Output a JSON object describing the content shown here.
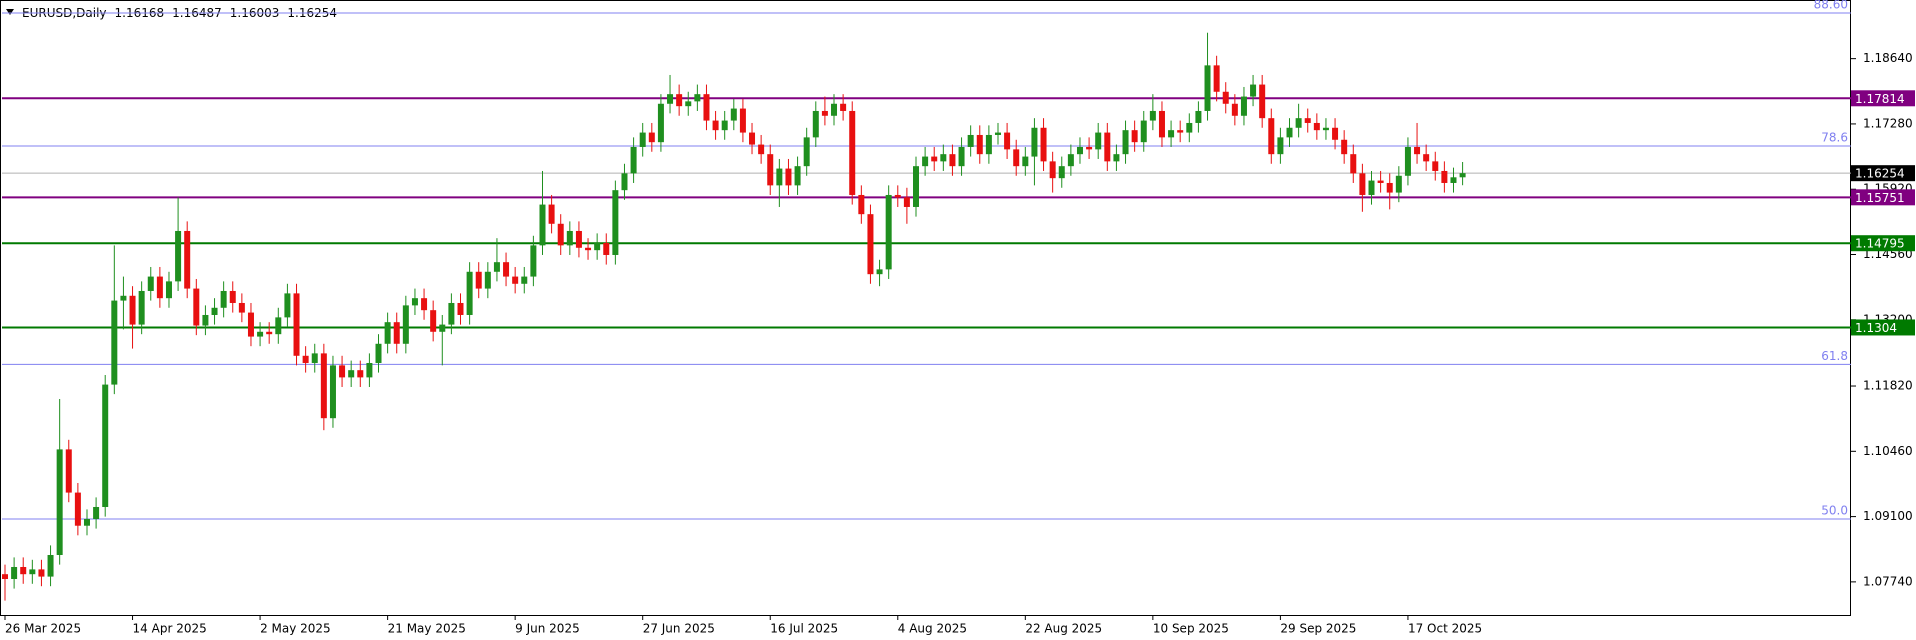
{
  "chart_data": {
    "type": "candlestick",
    "symbol": "EURUSD,Daily",
    "categories": [
      "26 Mar 2025",
      null,
      null,
      null,
      null,
      null,
      null,
      null,
      null,
      null,
      null,
      null,
      null,
      null,
      "14 Apr 2025",
      null,
      null,
      null,
      null,
      null,
      null,
      null,
      null,
      null,
      null,
      null,
      null,
      null,
      "2 May 2025",
      null,
      null,
      null,
      null,
      null,
      null,
      null,
      null,
      null,
      null,
      null,
      null,
      null,
      "21 May 2025",
      null,
      null,
      null,
      null,
      null,
      null,
      null,
      null,
      null,
      null,
      null,
      null,
      null,
      "9 Jun 2025",
      null,
      null,
      null,
      null,
      null,
      null,
      null,
      null,
      null,
      null,
      null,
      null,
      null,
      "27 Jun 2025",
      null,
      null,
      null,
      null,
      null,
      null,
      null,
      null,
      null,
      null,
      null,
      null,
      null,
      "16 Jul 2025",
      null,
      null,
      null,
      null,
      null,
      null,
      null,
      null,
      null,
      null,
      null,
      null,
      null,
      "4 Aug 2025",
      null,
      null,
      null,
      null,
      null,
      null,
      null,
      null,
      null,
      null,
      null,
      null,
      null,
      "22 Aug 2025",
      null,
      null,
      null,
      null,
      null,
      null,
      null,
      null,
      null,
      null,
      null,
      null,
      null,
      "10 Sep 2025",
      null,
      null,
      null,
      null,
      null,
      null,
      null,
      null,
      null,
      null,
      null,
      null,
      null,
      "29 Sep 2025",
      null,
      null,
      null,
      null,
      null,
      null,
      null,
      null,
      null,
      null,
      null,
      null,
      null,
      "17 Oct 2025",
      null,
      null,
      null,
      null,
      null,
      null
    ],
    "open": [
      1.079,
      1.078,
      1.0805,
      1.079,
      1.08,
      1.0785,
      1.083,
      1.105,
      1.096,
      1.0891,
      1.0905,
      1.093,
      1.1185,
      1.136,
      1.137,
      1.131,
      1.138,
      1.141,
      1.1365,
      1.14,
      1.1505,
      1.1385,
      1.1308,
      1.133,
      1.1345,
      1.138,
      1.1355,
      1.1335,
      1.1285,
      1.1295,
      1.129,
      1.1325,
      1.1375,
      1.1245,
      1.123,
      1.125,
      1.1115,
      1.1225,
      1.12,
      1.1215,
      1.12,
      1.123,
      1.127,
      1.1315,
      1.127,
      1.135,
      1.1365,
      1.134,
      1.1295,
      1.131,
      1.1355,
      1.133,
      1.142,
      1.1385,
      1.142,
      1.144,
      1.141,
      1.1395,
      1.141,
      1.1475,
      1.156,
      1.152,
      1.1475,
      1.1505,
      1.147,
      1.1465,
      1.148,
      1.1455,
      1.159,
      1.1625,
      1.168,
      1.171,
      1.169,
      1.177,
      1.179,
      1.1765,
      1.1775,
      1.179,
      1.1735,
      1.1715,
      1.1735,
      1.176,
      1.171,
      1.1685,
      1.1665,
      1.16,
      1.1635,
      1.16,
      1.164,
      1.17,
      1.1755,
      1.1745,
      1.177,
      1.1755,
      1.158,
      1.154,
      1.1415,
      1.1425,
      1.158,
      1.1575,
      1.1555,
      1.164,
      1.166,
      1.165,
      1.1665,
      1.164,
      1.168,
      1.1705,
      1.1665,
      1.1705,
      1.171,
      1.1675,
      1.164,
      1.166,
      1.172,
      1.165,
      1.1615,
      1.164,
      1.1665,
      1.168,
      1.1675,
      1.171,
      1.165,
      1.1665,
      1.1715,
      1.169,
      1.1735,
      1.1755,
      1.17,
      1.1715,
      1.171,
      1.173,
      1.1755,
      1.185,
      1.1795,
      1.177,
      1.1745,
      1.1785,
      1.181,
      1.174,
      1.1665,
      1.17,
      1.172,
      1.174,
      1.173,
      1.1715,
      1.172,
      1.1695,
      1.1665,
      1.1625,
      1.158,
      1.161,
      1.1605,
      1.1585,
      1.162,
      1.168,
      1.1665,
      1.165,
      1.163,
      1.1605,
      1.16168
    ],
    "high": [
      1.081,
      1.0825,
      1.0825,
      1.082,
      1.082,
      1.085,
      1.1155,
      1.107,
      1.098,
      1.0925,
      1.095,
      1.1205,
      1.1475,
      1.141,
      1.139,
      1.14,
      1.143,
      1.143,
      1.142,
      1.1575,
      1.1525,
      1.1405,
      1.135,
      1.1365,
      1.14,
      1.14,
      1.1375,
      1.1355,
      1.1315,
      1.1315,
      1.1345,
      1.1395,
      1.1395,
      1.1265,
      1.127,
      1.127,
      1.1245,
      1.1245,
      1.1235,
      1.1235,
      1.125,
      1.129,
      1.1335,
      1.1335,
      1.137,
      1.1385,
      1.1385,
      1.136,
      1.133,
      1.1375,
      1.1375,
      1.144,
      1.144,
      1.144,
      1.149,
      1.146,
      1.143,
      1.143,
      1.1495,
      1.163,
      1.158,
      1.154,
      1.1525,
      1.1525,
      1.149,
      1.15,
      1.15,
      1.161,
      1.1645,
      1.17,
      1.173,
      1.173,
      1.179,
      1.183,
      1.181,
      1.1795,
      1.181,
      1.181,
      1.1755,
      1.1755,
      1.178,
      1.178,
      1.173,
      1.1705,
      1.1685,
      1.1655,
      1.1655,
      1.166,
      1.172,
      1.1775,
      1.1785,
      1.179,
      1.179,
      1.1775,
      1.16,
      1.156,
      1.1445,
      1.16,
      1.16,
      1.1595,
      1.166,
      1.168,
      1.168,
      1.1685,
      1.1685,
      1.17,
      1.1725,
      1.1725,
      1.1725,
      1.173,
      1.173,
      1.1695,
      1.168,
      1.174,
      1.174,
      1.167,
      1.166,
      1.1685,
      1.17,
      1.17,
      1.173,
      1.173,
      1.1685,
      1.1735,
      1.1735,
      1.1755,
      1.179,
      1.1775,
      1.1735,
      1.1735,
      1.175,
      1.1775,
      1.1918,
      1.187,
      1.1815,
      1.179,
      1.1805,
      1.183,
      1.183,
      1.176,
      1.172,
      1.174,
      1.177,
      1.176,
      1.175,
      1.174,
      1.174,
      1.1715,
      1.1685,
      1.1645,
      1.163,
      1.163,
      1.1625,
      1.164,
      1.17,
      1.173,
      1.1685,
      1.167,
      1.165,
      1.1637,
      1.16487
    ],
    "low": [
      1.0735,
      1.076,
      1.077,
      1.077,
      1.0765,
      1.0765,
      1.081,
      1.094,
      1.0871,
      1.0871,
      1.0885,
      1.091,
      1.1165,
      1.13,
      1.126,
      1.129,
      1.136,
      1.1345,
      1.1345,
      1.138,
      1.1365,
      1.1288,
      1.1288,
      1.131,
      1.1325,
      1.1335,
      1.1315,
      1.1265,
      1.1265,
      1.127,
      1.127,
      1.1305,
      1.1225,
      1.121,
      1.121,
      1.109,
      1.1095,
      1.118,
      1.118,
      1.118,
      1.118,
      1.121,
      1.125,
      1.125,
      1.125,
      1.133,
      1.132,
      1.1275,
      1.1225,
      1.129,
      1.131,
      1.131,
      1.1365,
      1.1365,
      1.14,
      1.139,
      1.1375,
      1.1375,
      1.139,
      1.1455,
      1.15,
      1.1455,
      1.1455,
      1.145,
      1.1445,
      1.1445,
      1.1435,
      1.1435,
      1.157,
      1.1605,
      1.166,
      1.167,
      1.167,
      1.175,
      1.1745,
      1.1745,
      1.1755,
      1.1715,
      1.1695,
      1.1695,
      1.1715,
      1.169,
      1.1665,
      1.1645,
      1.158,
      1.1555,
      1.158,
      1.158,
      1.162,
      1.168,
      1.1725,
      1.1725,
      1.1735,
      1.156,
      1.152,
      1.1395,
      1.139,
      1.1405,
      1.1555,
      1.152,
      1.1535,
      1.162,
      1.163,
      1.163,
      1.162,
      1.162,
      1.166,
      1.1645,
      1.1645,
      1.1685,
      1.1655,
      1.162,
      1.162,
      1.16,
      1.163,
      1.1585,
      1.1595,
      1.162,
      1.1645,
      1.1655,
      1.1655,
      1.163,
      1.163,
      1.1645,
      1.167,
      1.167,
      1.1715,
      1.168,
      1.168,
      1.169,
      1.169,
      1.171,
      1.1735,
      1.1775,
      1.175,
      1.1725,
      1.1725,
      1.1765,
      1.172,
      1.1645,
      1.1645,
      1.168,
      1.17,
      1.171,
      1.1695,
      1.1695,
      1.1675,
      1.1645,
      1.1605,
      1.1545,
      1.156,
      1.1585,
      1.155,
      1.1565,
      1.16,
      1.1645,
      1.163,
      1.161,
      1.1585,
      1.1585,
      1.16003
    ],
    "close": [
      1.078,
      1.0805,
      1.079,
      1.08,
      1.0785,
      1.083,
      1.105,
      1.096,
      1.0891,
      1.0905,
      1.093,
      1.1185,
      1.136,
      1.137,
      1.131,
      1.138,
      1.141,
      1.1365,
      1.14,
      1.1505,
      1.1385,
      1.1308,
      1.133,
      1.1345,
      1.138,
      1.1355,
      1.1335,
      1.1285,
      1.1295,
      1.129,
      1.1325,
      1.1375,
      1.1245,
      1.123,
      1.125,
      1.1115,
      1.1225,
      1.12,
      1.1215,
      1.12,
      1.123,
      1.127,
      1.1315,
      1.127,
      1.135,
      1.1365,
      1.134,
      1.1295,
      1.131,
      1.1355,
      1.133,
      1.142,
      1.1385,
      1.142,
      1.144,
      1.141,
      1.1395,
      1.141,
      1.1475,
      1.156,
      1.152,
      1.1475,
      1.1505,
      1.147,
      1.1465,
      1.148,
      1.1455,
      1.159,
      1.1625,
      1.168,
      1.171,
      1.169,
      1.177,
      1.179,
      1.1765,
      1.1775,
      1.179,
      1.1735,
      1.1715,
      1.1735,
      1.176,
      1.171,
      1.1685,
      1.1665,
      1.16,
      1.1635,
      1.16,
      1.164,
      1.17,
      1.1755,
      1.1745,
      1.177,
      1.1755,
      1.158,
      1.154,
      1.1415,
      1.1425,
      1.158,
      1.1575,
      1.1555,
      1.164,
      1.166,
      1.165,
      1.1665,
      1.164,
      1.168,
      1.1705,
      1.1665,
      1.1705,
      1.171,
      1.1675,
      1.164,
      1.166,
      1.172,
      1.165,
      1.1615,
      1.164,
      1.1665,
      1.168,
      1.1675,
      1.171,
      1.165,
      1.1665,
      1.1715,
      1.169,
      1.1735,
      1.1755,
      1.17,
      1.1715,
      1.171,
      1.173,
      1.1755,
      1.185,
      1.1795,
      1.177,
      1.1745,
      1.1785,
      1.181,
      1.174,
      1.1665,
      1.17,
      1.172,
      1.174,
      1.173,
      1.1715,
      1.172,
      1.1695,
      1.1665,
      1.1625,
      1.158,
      1.161,
      1.1605,
      1.1585,
      1.162,
      1.168,
      1.1665,
      1.165,
      1.163,
      1.1605,
      1.16168,
      1.16254
    ],
    "up_color": "#1f8f1f",
    "down_color": "#e81010",
    "ylim": [
      1.0705,
      1.1982
    ],
    "yticks": [
      {
        "value": 1.0774,
        "label": "1.07740"
      },
      {
        "value": 1.091,
        "label": "1.09100"
      },
      {
        "value": 1.1046,
        "label": "1.10460"
      },
      {
        "value": 1.1182,
        "label": "1.11820"
      },
      {
        "value": 1.132,
        "label": "1.13200"
      },
      {
        "value": 1.1456,
        "label": "1.14560"
      },
      {
        "value": 1.1592,
        "label": "1.15920"
      },
      {
        "value": 1.1728,
        "label": "1.17280"
      },
      {
        "value": 1.1864,
        "label": "1.18640"
      }
    ],
    "levels": [
      {
        "price": 1.17814,
        "color": "#800080"
      },
      {
        "price": 1.15751,
        "color": "#800080"
      },
      {
        "price": 1.14795,
        "color": "#007a00"
      },
      {
        "price": 1.1304,
        "color": "#007a00"
      }
    ],
    "current_price_color": "#000000",
    "fib_color": "#8080f0",
    "fib_levels": [
      {
        "label": "88.60",
        "price": 1.1959
      },
      {
        "label": "78.6",
        "price": 1.1682
      },
      {
        "label": "61.8",
        "price": 1.1227
      },
      {
        "label": "50.0",
        "price": 1.0905
      }
    ]
  }
}
